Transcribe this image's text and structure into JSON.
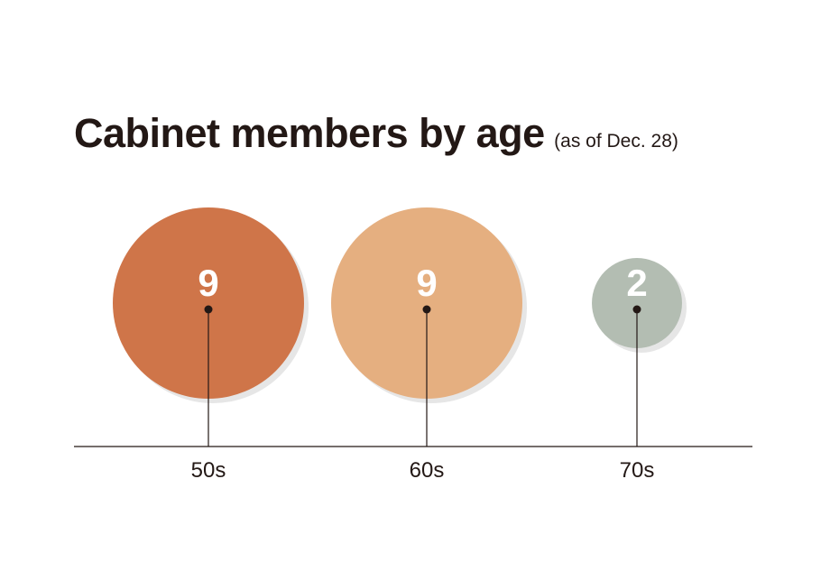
{
  "chart_data": {
    "type": "bubble",
    "title": "Cabinet members by age",
    "subtitle": "(as of Dec. 28)",
    "categories": [
      "50s",
      "60s",
      "70s"
    ],
    "values": [
      9,
      9,
      2
    ],
    "colors": [
      "#cf7549",
      "#e5af80",
      "#b3bdb2"
    ],
    "shadow_color": "#e6e6e6",
    "label_inside_color": "#ffffff",
    "label_outside_color": "#231815",
    "axis_color": "#231815",
    "grid": false,
    "legend": "none"
  }
}
